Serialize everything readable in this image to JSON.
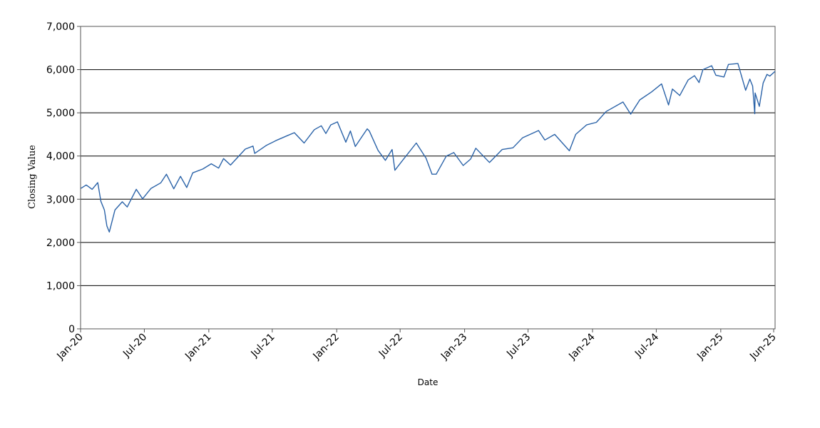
{
  "chart_data": {
    "type": "line",
    "title": "",
    "xlabel": "Date",
    "ylabel": "Closing Value",
    "ylim": [
      0,
      7000
    ],
    "yticks": [
      "0",
      "1,000",
      "2,000",
      "3,000",
      "4,000",
      "5,000",
      "6,000",
      "7,000"
    ],
    "ytick_values": [
      0,
      1000,
      2000,
      3000,
      4000,
      5000,
      6000,
      7000
    ],
    "xlim": [
      "2020-01-01",
      "2025-06-05"
    ],
    "xticks": [
      {
        "label": "Jan-20",
        "date": "2020-01-01"
      },
      {
        "label": "Jul-20",
        "date": "2020-07-01"
      },
      {
        "label": "Jan-21",
        "date": "2021-01-01"
      },
      {
        "label": "Jul-21",
        "date": "2021-07-01"
      },
      {
        "label": "Jan-22",
        "date": "2022-01-01"
      },
      {
        "label": "Jul-22",
        "date": "2022-07-01"
      },
      {
        "label": "Jan-23",
        "date": "2023-01-01"
      },
      {
        "label": "Jul-23",
        "date": "2023-07-01"
      },
      {
        "label": "Jan-24",
        "date": "2024-01-01"
      },
      {
        "label": "Jul-24",
        "date": "2024-07-01"
      },
      {
        "label": "Jan-25",
        "date": "2025-01-01"
      },
      {
        "label": "Jun-25",
        "date": "2025-06-01"
      }
    ],
    "grid": "horizontal",
    "line_color": "#2b63a8",
    "series": [
      {
        "x": [
          "2020-01-02",
          "2020-01-17",
          "2020-02-03",
          "2020-02-19",
          "2020-02-28",
          "2020-03-09",
          "2020-03-16",
          "2020-03-23",
          "2020-04-08",
          "2020-04-29",
          "2020-05-13",
          "2020-06-08",
          "2020-06-26",
          "2020-07-20",
          "2020-08-17",
          "2020-09-02",
          "2020-09-23",
          "2020-10-12",
          "2020-10-30",
          "2020-11-16",
          "2020-12-15",
          "2021-01-08",
          "2021-01-29",
          "2021-02-12",
          "2021-03-04",
          "2021-04-15",
          "2021-05-07",
          "2021-05-12",
          "2021-06-15",
          "2021-07-15",
          "2021-08-13",
          "2021-09-02",
          "2021-09-30",
          "2021-10-29",
          "2021-11-18",
          "2021-12-01",
          "2021-12-15",
          "2022-01-03",
          "2022-01-27",
          "2022-02-09",
          "2022-02-23",
          "2022-03-29",
          "2022-04-04",
          "2022-04-29",
          "2022-05-20",
          "2022-06-08",
          "2022-06-16",
          "2022-07-08",
          "2022-08-16",
          "2022-09-13",
          "2022-09-30",
          "2022-10-12",
          "2022-11-10",
          "2022-12-01",
          "2022-12-28",
          "2023-01-18",
          "2023-02-02",
          "2023-03-13",
          "2023-04-18",
          "2023-05-19",
          "2023-06-15",
          "2023-07-31",
          "2023-08-18",
          "2023-09-15",
          "2023-10-27",
          "2023-11-14",
          "2023-12-15",
          "2024-01-12",
          "2024-02-09",
          "2024-03-28",
          "2024-04-19",
          "2024-05-15",
          "2024-06-17",
          "2024-07-16",
          "2024-08-05",
          "2024-08-16",
          "2024-09-06",
          "2024-09-30",
          "2024-10-18",
          "2024-10-31",
          "2024-11-11",
          "2024-12-06",
          "2024-12-18",
          "2025-01-10",
          "2025-01-23",
          "2025-02-19",
          "2025-03-13",
          "2025-03-25",
          "2025-04-02",
          "2025-04-08",
          "2025-04-09",
          "2025-04-21",
          "2025-05-02",
          "2025-05-13",
          "2025-05-21",
          "2025-06-05"
        ],
        "y": [
          3250,
          3330,
          3230,
          3385,
          2950,
          2750,
          2380,
          2240,
          2750,
          2940,
          2820,
          3230,
          3010,
          3250,
          3380,
          3580,
          3240,
          3530,
          3270,
          3610,
          3700,
          3820,
          3720,
          3940,
          3790,
          4160,
          4230,
          4060,
          4250,
          4370,
          4470,
          4540,
          4300,
          4610,
          4700,
          4520,
          4720,
          4790,
          4320,
          4580,
          4220,
          4630,
          4580,
          4130,
          3900,
          4150,
          3670,
          3900,
          4300,
          3950,
          3580,
          3580,
          4000,
          4080,
          3780,
          3930,
          4180,
          3850,
          4150,
          4190,
          4420,
          4590,
          4370,
          4500,
          4120,
          4500,
          4720,
          4780,
          5030,
          5250,
          4970,
          5300,
          5480,
          5670,
          5180,
          5550,
          5400,
          5760,
          5860,
          5700,
          6000,
          6090,
          5870,
          5830,
          6120,
          6140,
          5520,
          5780,
          5620,
          4980,
          5460,
          5150,
          5690,
          5890,
          5850,
          5960
        ]
      }
    ]
  }
}
